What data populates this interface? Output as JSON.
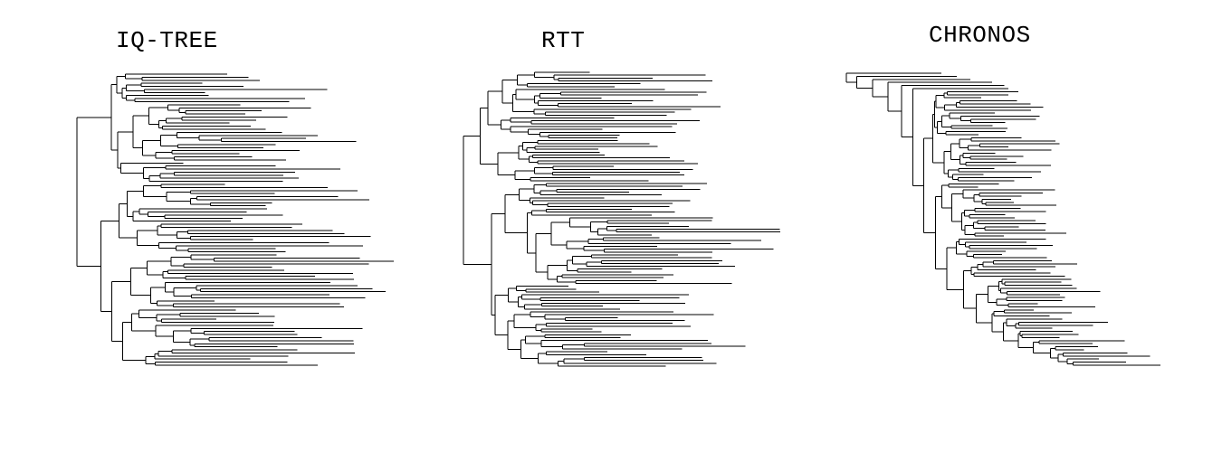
{
  "panels": [
    {
      "title": "IQ-TREE",
      "leaves": 96,
      "seed": 11,
      "style": "mixed"
    },
    {
      "title": "RTT",
      "leaves": 104,
      "seed": 29,
      "style": "mixed"
    },
    {
      "title": "CHRONOS",
      "leaves": 96,
      "seed": 47,
      "style": "caterpillar"
    }
  ],
  "colors": {
    "line": "#000000",
    "background": "#ffffff"
  }
}
